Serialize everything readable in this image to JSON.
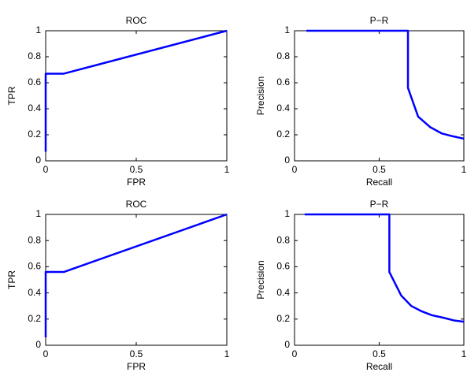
{
  "chart_data": [
    {
      "type": "line",
      "title": "ROC",
      "xlabel": "FPR",
      "ylabel": "TPR",
      "color": "#0000ff",
      "x": [
        0,
        0,
        0.1,
        1
      ],
      "values": [
        0.07,
        0.67,
        0.67,
        1
      ],
      "xlim": [
        0,
        1
      ],
      "ylim": [
        0,
        1
      ],
      "xticks": [
        0,
        0.5,
        1
      ],
      "yticks": [
        0,
        0.2,
        0.4,
        0.6,
        0.8,
        1
      ]
    },
    {
      "type": "line",
      "title": "P−R",
      "xlabel": "Recall",
      "ylabel": "Precision",
      "color": "#0000ff",
      "x": [
        0.07,
        0.67,
        0.67,
        0.73,
        0.8,
        0.87,
        0.93,
        1
      ],
      "values": [
        1,
        1,
        0.56,
        0.34,
        0.26,
        0.21,
        0.19,
        0.17
      ],
      "xlim": [
        0,
        1
      ],
      "ylim": [
        0,
        1
      ],
      "xticks": [
        0,
        0.5,
        1
      ],
      "yticks": [
        0,
        0.2,
        0.4,
        0.6,
        0.8,
        1
      ]
    },
    {
      "type": "line",
      "title": "ROC",
      "xlabel": "FPR",
      "ylabel": "TPR",
      "color": "#0000ff",
      "x": [
        0,
        0,
        0.1,
        1
      ],
      "values": [
        0.06,
        0.56,
        0.56,
        1
      ],
      "xlim": [
        0,
        1
      ],
      "ylim": [
        0,
        1
      ],
      "xticks": [
        0,
        0.5,
        1
      ],
      "yticks": [
        0,
        0.2,
        0.4,
        0.6,
        0.8,
        1
      ]
    },
    {
      "type": "line",
      "title": "P−R",
      "xlabel": "Recall",
      "ylabel": "Precision",
      "color": "#0000ff",
      "x": [
        0.06,
        0.56,
        0.56,
        0.63,
        0.69,
        0.75,
        0.81,
        0.88,
        0.94,
        1
      ],
      "values": [
        1,
        1,
        0.56,
        0.38,
        0.3,
        0.26,
        0.23,
        0.21,
        0.19,
        0.18
      ],
      "xlim": [
        0,
        1
      ],
      "ylim": [
        0,
        1
      ],
      "xticks": [
        0,
        0.5,
        1
      ],
      "yticks": [
        0,
        0.2,
        0.4,
        0.6,
        0.8,
        1
      ]
    }
  ]
}
